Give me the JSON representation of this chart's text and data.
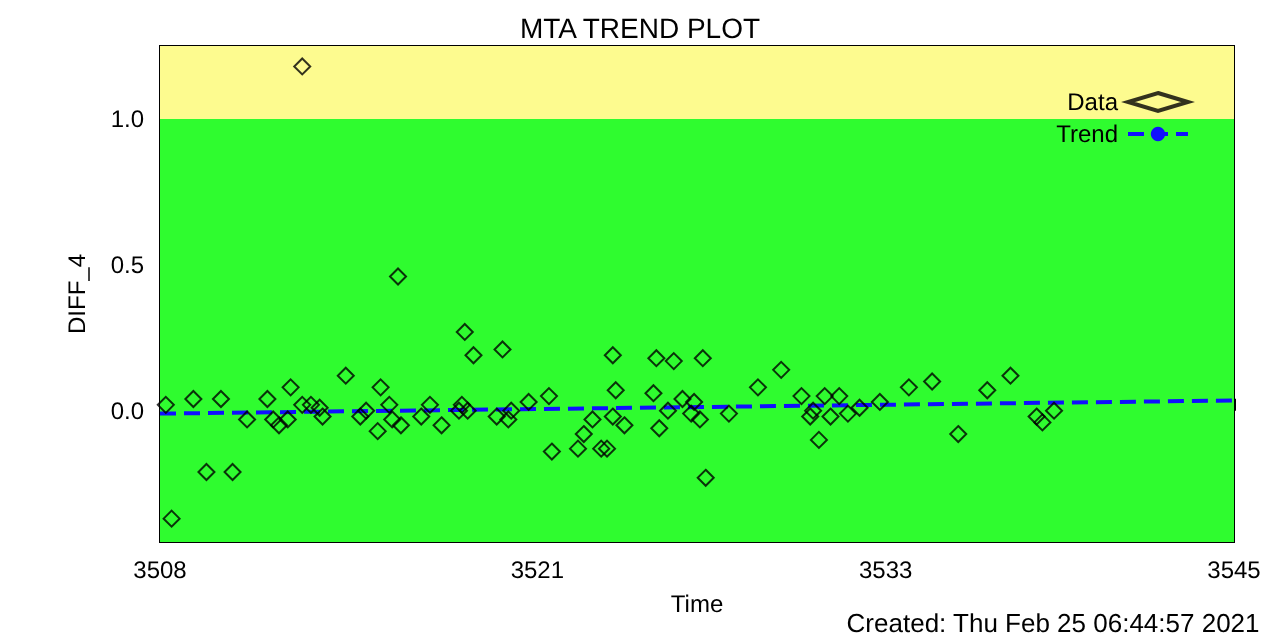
{
  "chart_data": {
    "type": "scatter",
    "title": "MTA TREND PLOT",
    "xlabel": "Time",
    "ylabel": "DIFF_4",
    "annotations": [
      "Created: Thu Feb 25 06:44:57 2021"
    ],
    "xlim": [
      3508,
      3545
    ],
    "xticks": [
      3508,
      3521,
      3533,
      3545
    ],
    "ylim": [
      -0.45,
      1.25
    ],
    "yticks": [
      {
        "value": -0.4,
        "label": null
      },
      {
        "value": -0.3,
        "label": null
      },
      {
        "value": -0.2,
        "label": null
      },
      {
        "value": -0.1,
        "label": null
      },
      {
        "value": 0,
        "label": "0.0"
      },
      {
        "value": 0.1,
        "label": null
      },
      {
        "value": 0.2,
        "label": null
      },
      {
        "value": 0.3,
        "label": null
      },
      {
        "value": 0.4,
        "label": null
      },
      {
        "value": 0.5,
        "label": "0.5"
      },
      {
        "value": 0.6,
        "label": null
      },
      {
        "value": 0.7,
        "label": null
      },
      {
        "value": 0.8,
        "label": null
      },
      {
        "value": 0.9,
        "label": null
      },
      {
        "value": 1.0,
        "label": "1.0"
      },
      {
        "value": 1.1,
        "label": null
      },
      {
        "value": 1.2,
        "label": null
      }
    ],
    "bands": [
      {
        "axis": "y",
        "from": -0.45,
        "to": 1.0,
        "color": "#2ffc2f"
      },
      {
        "axis": "y",
        "from": 1.0,
        "to": 1.25,
        "color": "#fdfb8f"
      }
    ],
    "grid": false,
    "legend": "top right",
    "series": [
      {
        "name": "Data",
        "color": "#000000",
        "marker": "diamond",
        "x": [
          3508.2,
          3508.4,
          3509.15,
          3509.6,
          3510.1,
          3510.5,
          3511.0,
          3511.7,
          3511.9,
          3512.1,
          3512.4,
          3512.5,
          3512.9,
          3512.9,
          3513.2,
          3513.5,
          3513.6,
          3514.4,
          3514.9,
          3515.1,
          3515.5,
          3515.6,
          3515.9,
          3516.0,
          3516.2,
          3516.3,
          3517.0,
          3517.3,
          3517.7,
          3518.3,
          3518.4,
          3518.5,
          3518.6,
          3518.8,
          3519.6,
          3519.8,
          3520.0,
          3520.1,
          3520.7,
          3521.4,
          3521.5,
          3522.4,
          3522.6,
          3522.9,
          3523.2,
          3523.4,
          3523.6,
          3523.6,
          3523.7,
          3524.0,
          3525.0,
          3525.1,
          3525.2,
          3525.5,
          3525.7,
          3526.0,
          3526.3,
          3526.4,
          3526.6,
          3526.7,
          3526.8,
          3527.6,
          3528.6,
          3529.4,
          3530.1,
          3530.4,
          3530.5,
          3530.7,
          3530.9,
          3531.1,
          3531.4,
          3531.7,
          3532.1,
          3532.8,
          3533.8,
          3534.6,
          3535.5,
          3536.5,
          3537.3,
          3538.2,
          3538.4,
          3538.8
        ],
        "values": [
          0.02,
          -0.37,
          0.04,
          -0.21,
          0.04,
          -0.21,
          -0.03,
          0.04,
          -0.03,
          -0.05,
          -0.03,
          0.08,
          1.18,
          0.02,
          0.02,
          0.01,
          -0.02,
          0.12,
          -0.02,
          0.0,
          -0.07,
          0.08,
          0.02,
          -0.03,
          0.46,
          -0.05,
          -0.02,
          0.02,
          -0.05,
          0.0,
          0.02,
          0.27,
          0.0,
          0.19,
          -0.02,
          0.21,
          -0.03,
          0.0,
          0.03,
          0.05,
          -0.14,
          -0.13,
          -0.08,
          -0.03,
          -0.13,
          -0.13,
          -0.02,
          0.19,
          0.07,
          -0.05,
          0.06,
          0.18,
          -0.06,
          0.0,
          0.17,
          0.04,
          -0.01,
          0.03,
          -0.03,
          0.18,
          -0.23,
          -0.01,
          0.08,
          0.14,
          0.05,
          -0.02,
          0.0,
          -0.1,
          0.05,
          -0.02,
          0.05,
          -0.01,
          0.01,
          0.03,
          0.08,
          0.1,
          -0.08,
          0.07,
          0.12,
          -0.02,
          -0.04,
          0.0
        ]
      },
      {
        "name": "Trend",
        "type": "line",
        "color": "#1010ff",
        "marker": "none",
        "line_style": "dashed",
        "x": [
          3508,
          3545
        ],
        "values": [
          -0.01,
          0.035
        ]
      }
    ]
  }
}
